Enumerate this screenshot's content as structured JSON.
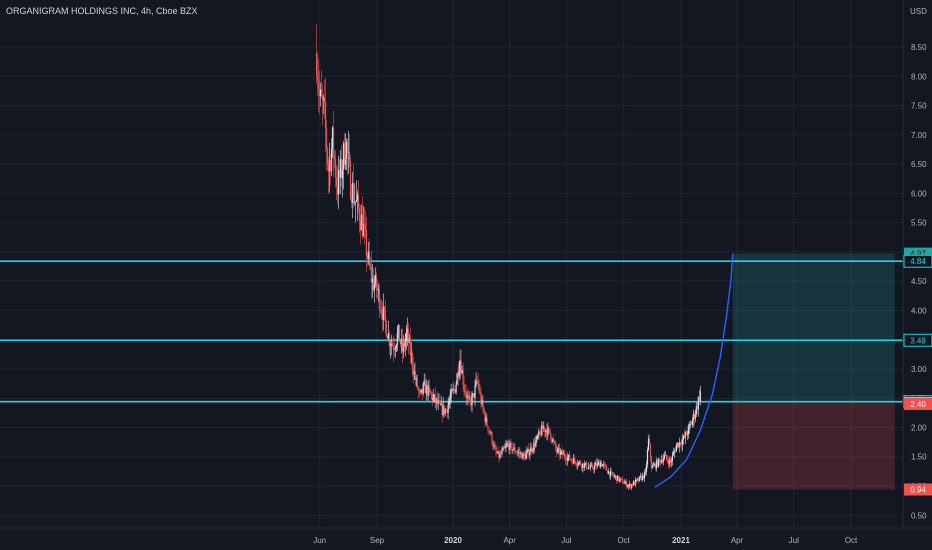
{
  "header": {
    "title": "ORGANIGRAM HOLDINGS INC, 4h, Cboe BZX",
    "currency": "USD"
  },
  "colors": {
    "background": "#131722",
    "grid": "#222631",
    "up_candle": "#e0e3eb",
    "down_candle": "#ef5350",
    "level_line": "#22d3e6",
    "curve": "#2962ff",
    "target_zone": "#26a69a",
    "stop_zone": "#ef5350"
  },
  "chart_data": {
    "type": "candlestick",
    "title": "ORGANIGRAM HOLDINGS INC, 4h, Cboe BZX",
    "ylabel": "USD",
    "ylim": [
      0.3,
      9.4
    ],
    "y_ticks": [
      0.5,
      1.0,
      1.5,
      2.0,
      2.5,
      3.0,
      3.5,
      4.0,
      4.5,
      5.0,
      5.5,
      6.0,
      6.5,
      7.0,
      7.5,
      8.0,
      8.5
    ],
    "y_tick_labels": [
      "0.50",
      "1.00",
      "1.50",
      "2.00",
      "2.50",
      "3.00",
      "3.50",
      "4.00",
      "4.50",
      "5.00",
      "5.50",
      "6.00",
      "6.50",
      "7.00",
      "7.50",
      "8.00",
      "8.50"
    ],
    "x_ticks": [
      "Jun",
      "Sep",
      "2020",
      "Apr",
      "Jul",
      "Oct",
      "2021",
      "Apr",
      "Jul",
      "Oct"
    ],
    "x_tick_dates": [
      "2019-06-01",
      "2019-09-01",
      "2020-01-01",
      "2020-04-01",
      "2020-07-01",
      "2020-10-01",
      "2021-01-01",
      "2021-04-01",
      "2021-07-01",
      "2021-10-01"
    ],
    "x_tick_bold": [
      "2020",
      "2021"
    ],
    "price_path": [
      [
        "2019-05-27",
        8.4
      ],
      [
        "2019-06-01",
        7.6
      ],
      [
        "2019-06-08",
        7.4
      ],
      [
        "2019-06-15",
        6.4
      ],
      [
        "2019-06-22",
        6.9
      ],
      [
        "2019-06-29",
        6.1
      ],
      [
        "2019-07-06",
        6.4
      ],
      [
        "2019-07-13",
        6.9
      ],
      [
        "2019-07-20",
        6.2
      ],
      [
        "2019-07-27",
        5.9
      ],
      [
        "2019-08-03",
        5.7
      ],
      [
        "2019-08-10",
        5.4
      ],
      [
        "2019-08-17",
        4.9
      ],
      [
        "2019-08-24",
        4.5
      ],
      [
        "2019-08-31",
        4.4
      ],
      [
        "2019-09-07",
        4.1
      ],
      [
        "2019-09-14",
        3.8
      ],
      [
        "2019-09-21",
        3.5
      ],
      [
        "2019-09-28",
        3.4
      ],
      [
        "2019-10-05",
        3.6
      ],
      [
        "2019-10-12",
        3.3
      ],
      [
        "2019-10-19",
        3.6
      ],
      [
        "2019-10-26",
        3.2
      ],
      [
        "2019-11-02",
        2.8
      ],
      [
        "2019-11-09",
        2.5
      ],
      [
        "2019-11-16",
        2.7
      ],
      [
        "2019-11-23",
        2.6
      ],
      [
        "2019-11-30",
        2.5
      ],
      [
        "2019-12-07",
        2.4
      ],
      [
        "2019-12-14",
        2.3
      ],
      [
        "2019-12-21",
        2.3
      ],
      [
        "2019-12-28",
        2.5
      ],
      [
        "2020-01-05",
        2.7
      ],
      [
        "2020-01-12",
        3.2
      ],
      [
        "2020-01-19",
        2.7
      ],
      [
        "2020-01-26",
        2.4
      ],
      [
        "2020-02-02",
        2.5
      ],
      [
        "2020-02-09",
        2.8
      ],
      [
        "2020-02-16",
        2.4
      ],
      [
        "2020-02-23",
        2.1
      ],
      [
        "2020-03-01",
        1.9
      ],
      [
        "2020-03-08",
        1.6
      ],
      [
        "2020-03-15",
        1.5
      ],
      [
        "2020-03-22",
        1.6
      ],
      [
        "2020-03-29",
        1.7
      ],
      [
        "2020-04-10",
        1.6
      ],
      [
        "2020-04-25",
        1.5
      ],
      [
        "2020-05-10",
        1.7
      ],
      [
        "2020-05-25",
        2.0
      ],
      [
        "2020-06-05",
        1.9
      ],
      [
        "2020-06-15",
        1.6
      ],
      [
        "2020-07-01",
        1.5
      ],
      [
        "2020-07-20",
        1.4
      ],
      [
        "2020-08-10",
        1.3
      ],
      [
        "2020-08-25",
        1.4
      ],
      [
        "2020-09-10",
        1.2
      ],
      [
        "2020-09-25",
        1.1
      ],
      [
        "2020-10-10",
        1.0
      ],
      [
        "2020-10-25",
        1.1
      ],
      [
        "2020-11-05",
        1.2
      ],
      [
        "2020-11-10",
        1.8
      ],
      [
        "2020-11-15",
        1.3
      ],
      [
        "2020-11-25",
        1.4
      ],
      [
        "2020-12-05",
        1.5
      ],
      [
        "2020-12-15",
        1.4
      ],
      [
        "2020-12-25",
        1.7
      ],
      [
        "2021-01-05",
        1.8
      ],
      [
        "2021-01-15",
        2.0
      ],
      [
        "2021-01-25",
        2.3
      ],
      [
        "2021-02-01",
        2.6
      ]
    ],
    "horizontal_levels": [
      {
        "price": 4.84,
        "label": "4.84"
      },
      {
        "price": 3.49,
        "label": "3.49"
      },
      {
        "price": 2.44,
        "label": "2.44"
      }
    ],
    "price_tags": [
      {
        "price": 4.97,
        "label": "4.97",
        "color": "#26a69a",
        "text": "#131722"
      },
      {
        "price": 4.84,
        "label": "4.84",
        "color": "#131722",
        "text": "#22d3e6",
        "border": "#22d3e6"
      },
      {
        "price": 3.49,
        "label": "3.49",
        "color": "#131722",
        "text": "#22d3e6",
        "border": "#22d3e6"
      },
      {
        "price": 2.44,
        "label": "2.44",
        "color": "#131722",
        "text": "#22d3e6",
        "border": "#22d3e6"
      },
      {
        "price": 2.42,
        "label": "2.42",
        "color": "#b2b5be",
        "text": "#131722"
      },
      {
        "price": 2.4,
        "label": "2.40",
        "color": "#ef5350",
        "text": "#ffffff"
      },
      {
        "price": 0.94,
        "label": "0.94",
        "color": "#ef5350",
        "text": "#ffffff"
      }
    ],
    "parabolic_curve": [
      [
        "2020-11-20",
        0.98
      ],
      [
        "2020-12-15",
        1.15
      ],
      [
        "2021-01-10",
        1.45
      ],
      [
        "2021-02-01",
        1.95
      ],
      [
        "2021-02-20",
        2.55
      ],
      [
        "2021-03-05",
        3.2
      ],
      [
        "2021-03-15",
        3.9
      ],
      [
        "2021-03-22",
        4.5
      ],
      [
        "2021-03-25",
        4.97
      ]
    ],
    "position": {
      "start_date": "2021-03-25",
      "end_date": "2021-12-10",
      "entry": 2.44,
      "target": 4.97,
      "stop": 0.94
    }
  }
}
